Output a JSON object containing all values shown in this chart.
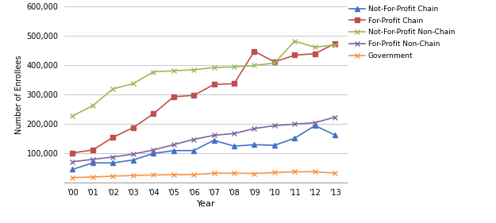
{
  "years": [
    2000,
    2001,
    2002,
    2003,
    2004,
    2005,
    2006,
    2007,
    2008,
    2009,
    2010,
    2011,
    2012,
    2013
  ],
  "year_labels": [
    "'00",
    "'01",
    "'02",
    "'03",
    "'04",
    "'05",
    "'06",
    "'07",
    "'08",
    "'09",
    "'10",
    "'11",
    "'12",
    "'13"
  ],
  "series": {
    "Not-For-Profit Chain": {
      "values": [
        46000,
        68000,
        68000,
        78000,
        100000,
        110000,
        110000,
        145000,
        125000,
        130000,
        128000,
        152000,
        195000,
        163000
      ],
      "color": "#4472C4",
      "marker": "^",
      "markersize": 4,
      "linewidth": 1.2
    },
    "For-Profit Chain": {
      "values": [
        102000,
        112000,
        155000,
        188000,
        235000,
        293000,
        298000,
        335000,
        338000,
        448000,
        412000,
        435000,
        440000,
        475000
      ],
      "color": "#C0504D",
      "marker": "s",
      "markersize": 4,
      "linewidth": 1.2
    },
    "Not-For-Profit Non-Chain": {
      "values": [
        228000,
        263000,
        320000,
        338000,
        378000,
        382000,
        385000,
        393000,
        395000,
        400000,
        408000,
        483000,
        462000,
        470000
      ],
      "color": "#9BBB59",
      "marker": "x",
      "markersize": 5,
      "linewidth": 1.2
    },
    "For-Profit Non-Chain": {
      "values": [
        72000,
        80000,
        88000,
        98000,
        112000,
        130000,
        148000,
        162000,
        168000,
        185000,
        195000,
        200000,
        205000,
        224000
      ],
      "color": "#8064A2",
      "marker": "x",
      "markersize": 5,
      "linewidth": 1.2
    },
    "Government": {
      "values": [
        18000,
        20000,
        23000,
        25000,
        27000,
        28000,
        28000,
        33000,
        33000,
        32000,
        35000,
        38000,
        38000,
        33000
      ],
      "color": "#F79646",
      "marker": "x",
      "markersize": 5,
      "linewidth": 1.2
    }
  },
  "xlabel": "Year",
  "ylabel": "Number of Enrollees",
  "ylim": [
    0,
    600000
  ],
  "yticks": [
    0,
    100000,
    200000,
    300000,
    400000,
    500000,
    600000
  ],
  "background_color": "#FFFFFF",
  "grid_color": "#C8C8C8",
  "legend_order": [
    "Not-For-Profit Chain",
    "For-Profit Chain",
    "Not-For-Profit Non-Chain",
    "For-Profit Non-Chain",
    "Government"
  ]
}
